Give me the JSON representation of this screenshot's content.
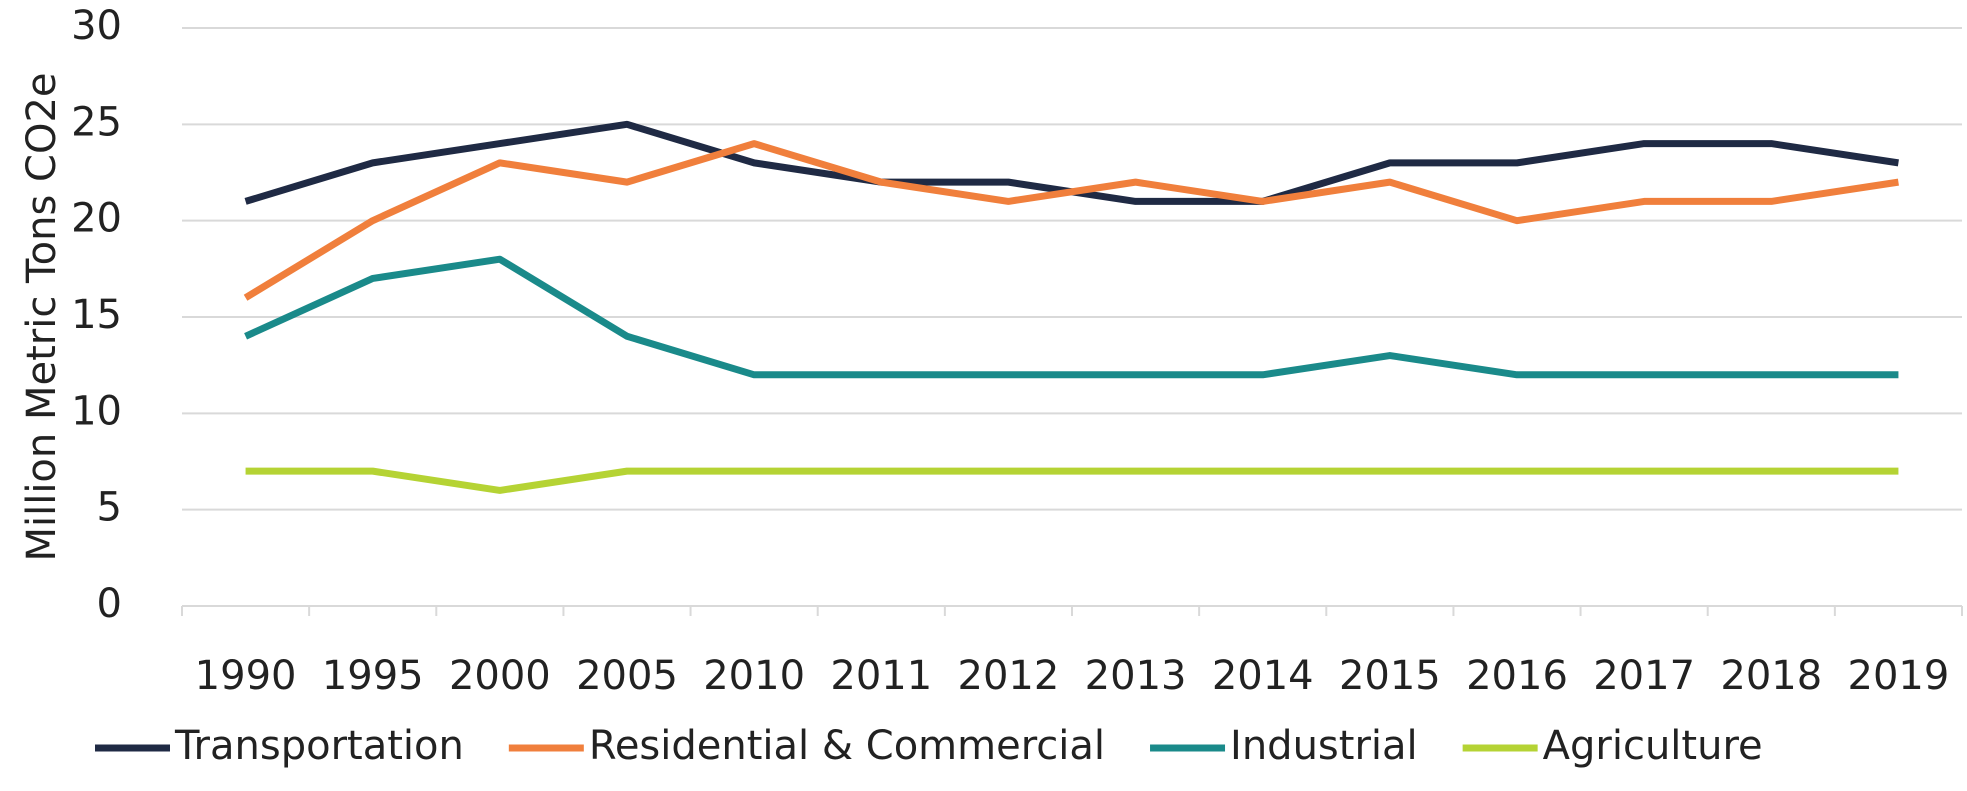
{
  "chart_data": {
    "type": "line",
    "y_label": "Million Metric Tons CO2e",
    "categories": [
      "1990",
      "1995",
      "2000",
      "2005",
      "2010",
      "2011",
      "2012",
      "2013",
      "2014",
      "2015",
      "2016",
      "2017",
      "2018",
      "2019"
    ],
    "series": [
      {
        "name": "Transportation",
        "color": "#1f2a44",
        "values": [
          21,
          23,
          24,
          25,
          23,
          22,
          22,
          21,
          21,
          23,
          23,
          24,
          24,
          23
        ]
      },
      {
        "name": "Residential & Commercial",
        "color": "#f07f3c",
        "values": [
          16,
          20,
          23,
          22,
          24,
          22,
          21,
          22,
          21,
          22,
          20,
          21,
          21,
          22
        ]
      },
      {
        "name": "Industrial",
        "color": "#1a8a8a",
        "values": [
          14,
          17,
          18,
          14,
          12,
          12,
          12,
          12,
          12,
          13,
          12,
          12,
          12,
          12
        ]
      },
      {
        "name": "Agriculture",
        "color": "#b5d334",
        "values": [
          7,
          7,
          6,
          7,
          7,
          7,
          7,
          7,
          7,
          7,
          7,
          7,
          7,
          7
        ]
      }
    ],
    "ylim": [
      0,
      30
    ],
    "yticks": [
      0,
      5,
      10,
      15,
      20,
      25,
      30
    ],
    "grid": true,
    "legend": "bottom"
  }
}
